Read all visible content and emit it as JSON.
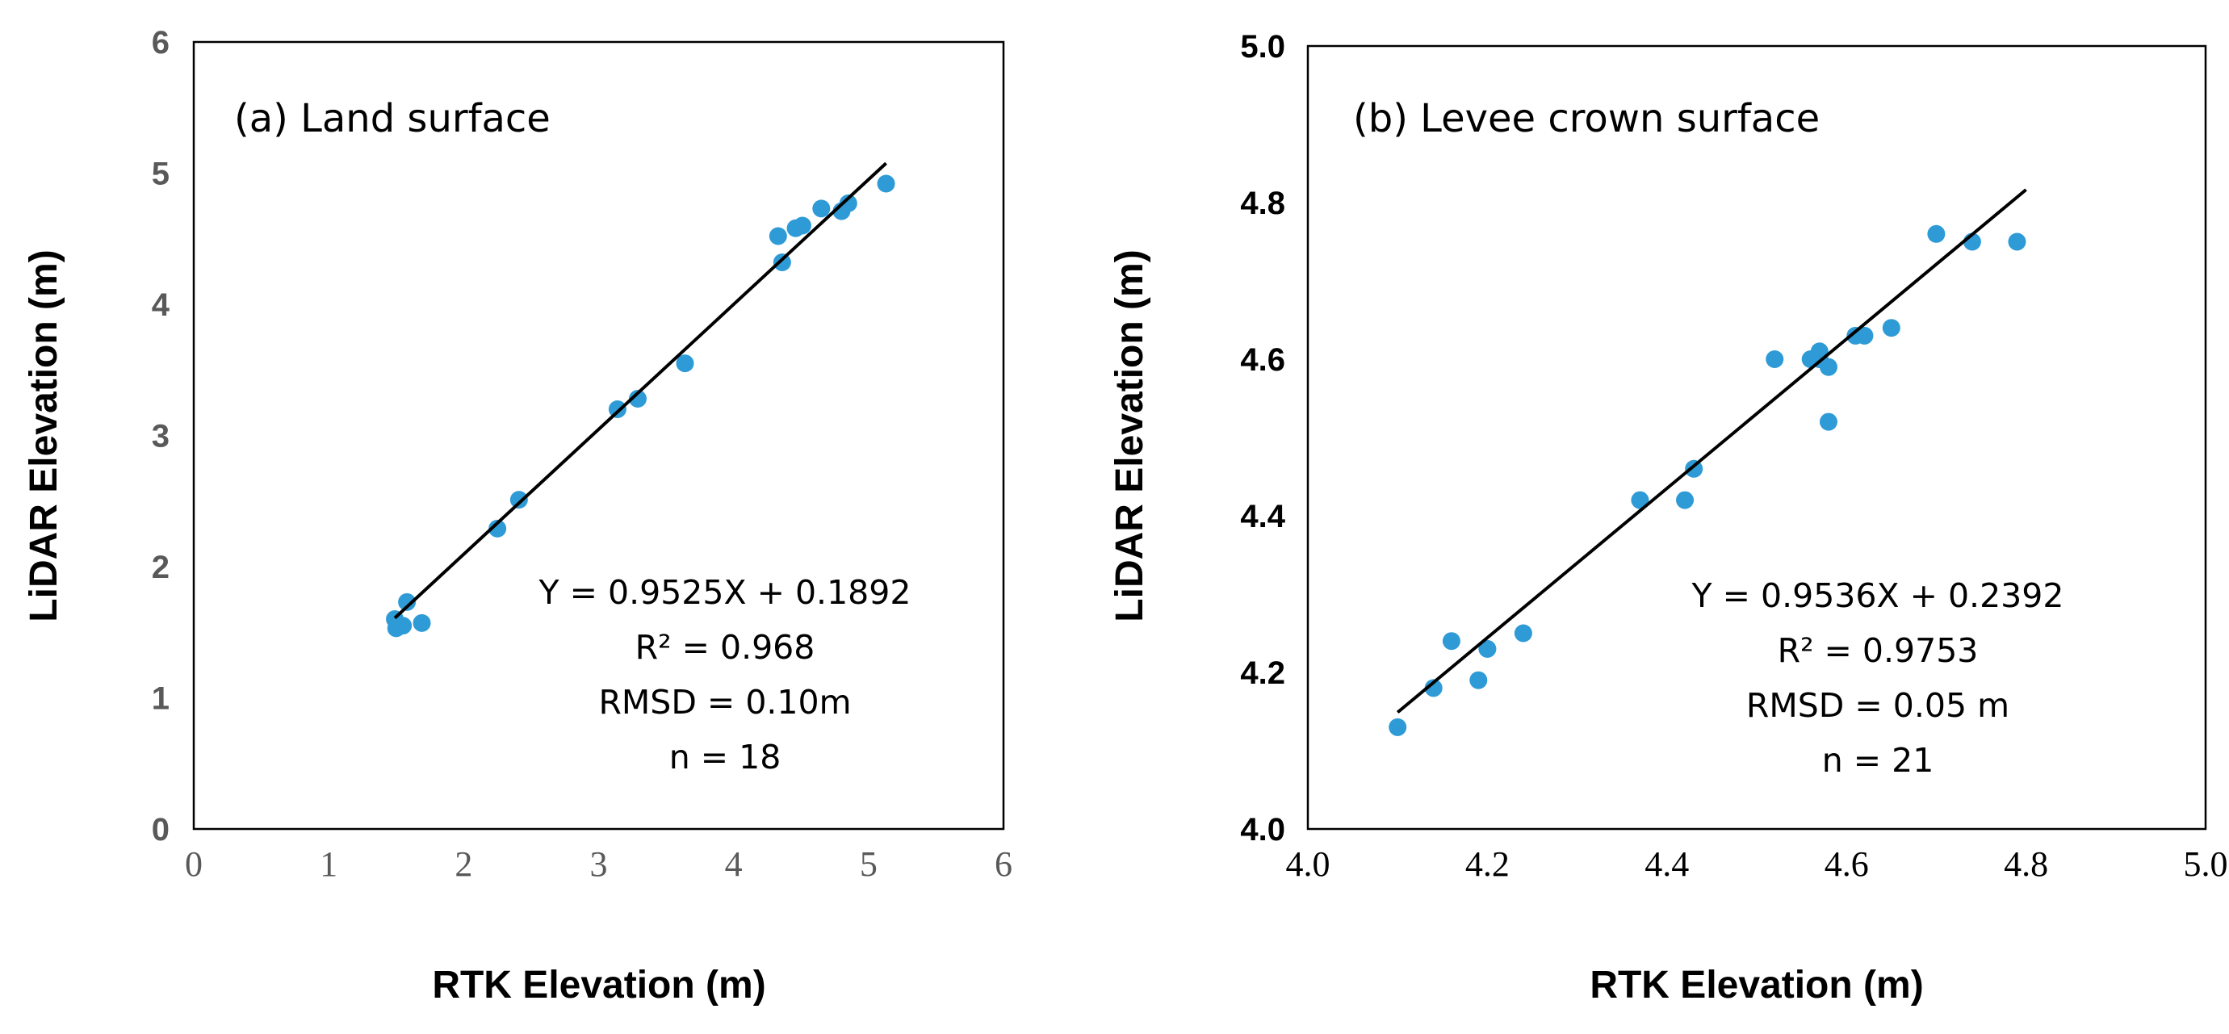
{
  "chart_data": [
    {
      "type": "scatter",
      "panel_label": "(a) Land surface",
      "xlabel": "RTK  Elevation (m)",
      "ylabel": "LiDAR Elevation (m)",
      "xlim": [
        0,
        6
      ],
      "ylim": [
        0,
        6
      ],
      "x_ticks": [
        "0",
        "1",
        "2",
        "3",
        "4",
        "5",
        "6"
      ],
      "y_ticks": [
        "0",
        "1",
        "2",
        "3",
        "4",
        "5",
        "6"
      ],
      "x_tick_values": [
        0,
        1,
        2,
        3,
        4,
        5,
        6
      ],
      "y_tick_values": [
        0,
        1,
        2,
        3,
        4,
        5,
        6
      ],
      "marker_color": "#2e9bd6",
      "points": [
        {
          "x": 1.49,
          "y": 1.6
        },
        {
          "x": 1.5,
          "y": 1.53
        },
        {
          "x": 1.55,
          "y": 1.55
        },
        {
          "x": 1.58,
          "y": 1.73
        },
        {
          "x": 1.69,
          "y": 1.57
        },
        {
          "x": 2.25,
          "y": 2.29
        },
        {
          "x": 2.41,
          "y": 2.51
        },
        {
          "x": 3.14,
          "y": 3.2
        },
        {
          "x": 3.29,
          "y": 3.28
        },
        {
          "x": 3.64,
          "y": 3.55
        },
        {
          "x": 4.33,
          "y": 4.52
        },
        {
          "x": 4.36,
          "y": 4.32
        },
        {
          "x": 4.46,
          "y": 4.58
        },
        {
          "x": 4.51,
          "y": 4.6
        },
        {
          "x": 4.65,
          "y": 4.73
        },
        {
          "x": 4.8,
          "y": 4.71
        },
        {
          "x": 4.85,
          "y": 4.77
        },
        {
          "x": 5.13,
          "y": 4.92
        }
      ],
      "fit": {
        "slope": 0.9525,
        "intercept": 0.1892,
        "x_range": [
          1.49,
          5.13
        ]
      },
      "stats": [
        "Y = 0.9525X + 0.1892",
        "R² = 0.968",
        "RMSD = 0.10m",
        "n = 18"
      ]
    },
    {
      "type": "scatter",
      "panel_label": "(b) Levee crown surface",
      "xlabel": "RTK Elevation (m)",
      "ylabel": "LiDAR Elevation (m)",
      "xlim": [
        4.0,
        5.0
      ],
      "ylim": [
        4.0,
        5.0
      ],
      "x_ticks": [
        "4.0",
        "4.2",
        "4.4",
        "4.6",
        "4.8",
        "5.0"
      ],
      "y_ticks": [
        "4.0",
        "4.2",
        "4.4",
        "4.6",
        "4.8",
        "5.0"
      ],
      "x_tick_values": [
        4.0,
        4.2,
        4.4,
        4.6,
        4.8,
        5.0
      ],
      "y_tick_values": [
        4.0,
        4.2,
        4.4,
        4.6,
        4.8,
        5.0
      ],
      "marker_color": "#2e9bd6",
      "points": [
        {
          "x": 4.1,
          "y": 4.13
        },
        {
          "x": 4.14,
          "y": 4.18
        },
        {
          "x": 4.16,
          "y": 4.24
        },
        {
          "x": 4.19,
          "y": 4.19
        },
        {
          "x": 4.2,
          "y": 4.23
        },
        {
          "x": 4.24,
          "y": 4.25
        },
        {
          "x": 4.37,
          "y": 4.42
        },
        {
          "x": 4.42,
          "y": 4.42
        },
        {
          "x": 4.43,
          "y": 4.46
        },
        {
          "x": 4.52,
          "y": 4.6
        },
        {
          "x": 4.56,
          "y": 4.6
        },
        {
          "x": 4.57,
          "y": 4.61
        },
        {
          "x": 4.57,
          "y": 4.6
        },
        {
          "x": 4.58,
          "y": 4.52
        },
        {
          "x": 4.58,
          "y": 4.59
        },
        {
          "x": 4.61,
          "y": 4.63
        },
        {
          "x": 4.62,
          "y": 4.63
        },
        {
          "x": 4.65,
          "y": 4.64
        },
        {
          "x": 4.7,
          "y": 4.76
        },
        {
          "x": 4.74,
          "y": 4.75
        },
        {
          "x": 4.79,
          "y": 4.75
        }
      ],
      "fit": {
        "slope": 0.9536,
        "intercept": 0.2392,
        "x_range": [
          4.1,
          4.8
        ]
      },
      "stats": [
        "Y = 0.9536X + 0.2392",
        "R² = 0.9753",
        "RMSD = 0.05 m",
        "n = 21"
      ]
    }
  ]
}
